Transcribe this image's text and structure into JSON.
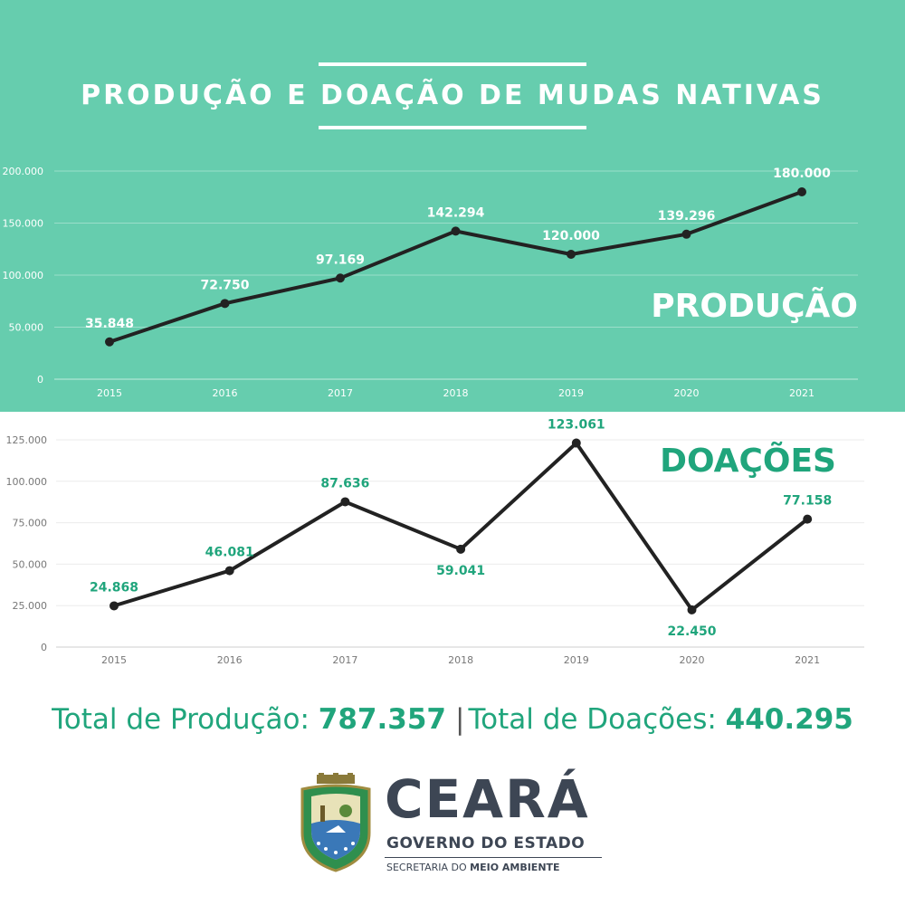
{
  "title": "PRODUÇÃO E DOAÇÃO DE MUDAS NATIVAS",
  "chart_data": [
    {
      "type": "line",
      "title": "PRODUÇÃO",
      "categories": [
        "2015",
        "2016",
        "2017",
        "2018",
        "2019",
        "2020",
        "2021"
      ],
      "values": [
        35848,
        72750,
        97169,
        142294,
        120000,
        139296,
        180000
      ],
      "value_labels": [
        "35.848",
        "72.750",
        "97.169",
        "142.294",
        "120.000",
        "139.296",
        "180.000"
      ],
      "yticks": [
        0,
        50000,
        100000,
        150000,
        200000
      ],
      "ytick_labels": [
        "0",
        "50.000",
        "100.000",
        "150.000",
        "200.000"
      ],
      "ylim": [
        0,
        200000
      ],
      "grid": true,
      "line_color": "#222222",
      "label_color": "#ffffff",
      "background": "#66cdae"
    },
    {
      "type": "line",
      "title": "DOAÇÕES",
      "categories": [
        "2015",
        "2016",
        "2017",
        "2018",
        "2019",
        "2020",
        "2021"
      ],
      "values": [
        24868,
        46081,
        87636,
        59041,
        123061,
        22450,
        77158
      ],
      "value_labels": [
        "24.868",
        "46.081",
        "87.636",
        "59.041",
        "123.061",
        "22.450",
        "77.158"
      ],
      "yticks": [
        0,
        25000,
        50000,
        75000,
        100000,
        125000
      ],
      "ytick_labels": [
        "0",
        "25.000",
        "50.000",
        "75.000",
        "100.000",
        "125.000"
      ],
      "ylim": [
        0,
        125000
      ],
      "grid": true,
      "line_color": "#222222",
      "label_color": "#20a57c",
      "background": "#ffffff"
    }
  ],
  "totals": {
    "producao_label": "Total de Produção: ",
    "producao_value": "787.357",
    "separator": "|",
    "doacoes_label": "Total de Doações: ",
    "doacoes_value": "440.295"
  },
  "brand": {
    "name": "CEARÁ",
    "subtitle": "GOVERNO DO ESTADO",
    "dept_prefix": "SECRETARIA DO ",
    "dept_bold": "MEIO AMBIENTE",
    "crest": "state-coat-of-arms",
    "text_color": "#3d4654"
  },
  "colors": {
    "accent": "#66cdae",
    "accent_dark": "#20a57c"
  }
}
